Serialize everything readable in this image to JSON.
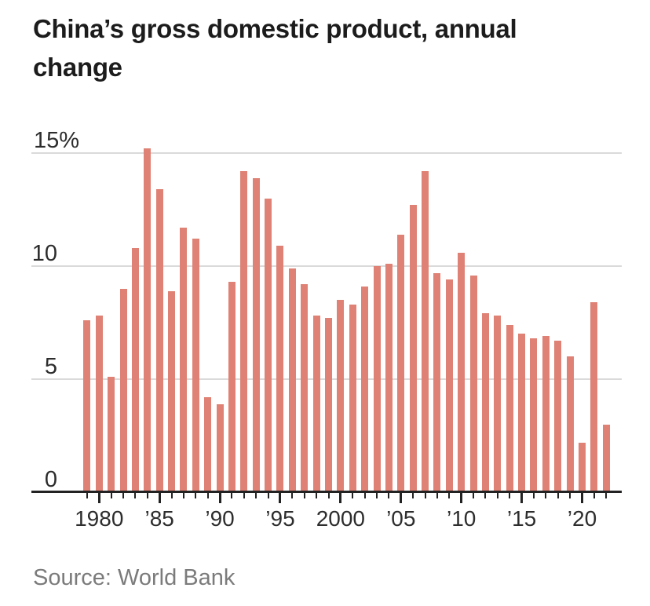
{
  "header": {
    "title": "China’s gross domestic product, annual change"
  },
  "footer": {
    "source": "Source: World Bank"
  },
  "chart_data": {
    "type": "bar",
    "title": "China’s gross domestic product, annual change",
    "unit": "percent",
    "xlabel": "",
    "ylabel": "",
    "ylim": [
      0,
      16
    ],
    "grid": true,
    "legend": false,
    "categories": [
      1979,
      1980,
      1981,
      1982,
      1983,
      1984,
      1985,
      1986,
      1987,
      1988,
      1989,
      1990,
      1991,
      1992,
      1993,
      1994,
      1995,
      1996,
      1997,
      1998,
      1999,
      2000,
      2001,
      2002,
      2003,
      2004,
      2005,
      2006,
      2007,
      2008,
      2009,
      2010,
      2011,
      2012,
      2013,
      2014,
      2015,
      2016,
      2017,
      2018,
      2019,
      2020,
      2021,
      2022
    ],
    "values": [
      7.6,
      7.8,
      5.1,
      9.0,
      10.8,
      15.2,
      13.4,
      8.9,
      11.7,
      11.2,
      4.2,
      3.9,
      9.3,
      14.2,
      13.9,
      13.0,
      10.9,
      9.9,
      9.2,
      7.8,
      7.7,
      8.5,
      8.3,
      9.1,
      10.0,
      10.1,
      11.4,
      12.7,
      14.2,
      9.7,
      9.4,
      10.6,
      9.6,
      7.9,
      7.8,
      7.4,
      7.0,
      6.8,
      6.9,
      6.7,
      6.0,
      2.2,
      8.4,
      3.0
    ],
    "ytick_values": [
      0,
      5,
      10,
      15
    ],
    "ytick_labels": [
      "0",
      "5",
      "10",
      "15%"
    ],
    "xtick_years": [
      1980,
      1985,
      1990,
      1995,
      2000,
      2005,
      2010,
      2015,
      2020
    ],
    "xtick_labels": [
      "1980",
      "’85",
      "’90",
      "’95",
      "2000",
      "’05",
      "’10",
      "’15",
      "’20"
    ],
    "bar_color": "#df8275",
    "gridline_color": "#dadada",
    "axis_color": "#222222",
    "label_color": "#2d2d2d"
  }
}
